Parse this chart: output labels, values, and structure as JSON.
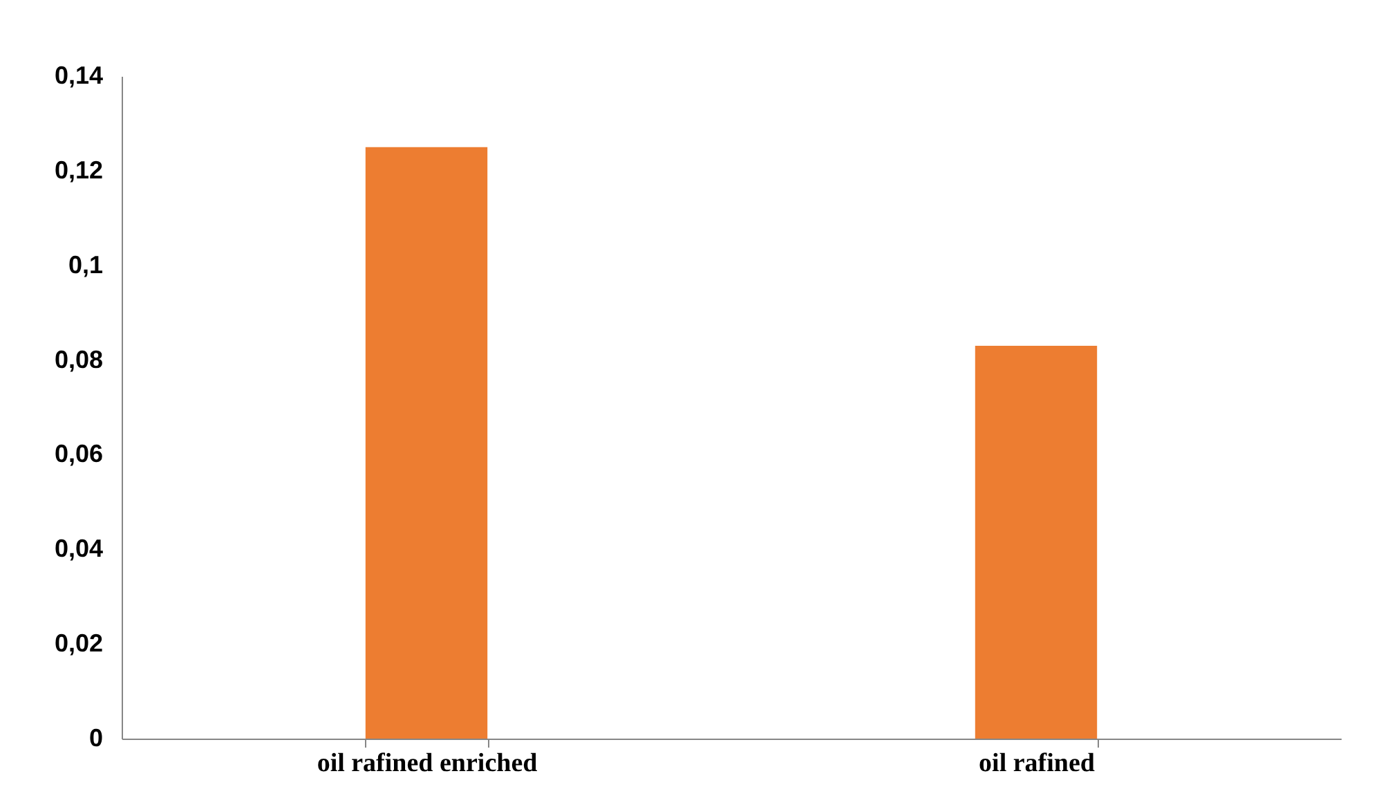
{
  "chart_data": {
    "type": "bar",
    "categories": [
      "oil rafined enriched",
      "oil rafined"
    ],
    "values": [
      0.125,
      0.083
    ],
    "color": "#ed7d31",
    "ylim": [
      0,
      0.14
    ],
    "yticks": [
      0,
      {
        "value": 0.02,
        "label": "0,02"
      },
      {
        "value": 0.04,
        "label": "0,04"
      },
      {
        "value": 0.06,
        "label": "0,06"
      },
      {
        "value": 0.08,
        "label": "0,08"
      },
      {
        "value": 0.1,
        "label": "0,1"
      },
      {
        "value": 0.12,
        "label": "0,12"
      },
      {
        "value": 0.14,
        "label": "0,14"
      }
    ],
    "grid": false
  }
}
